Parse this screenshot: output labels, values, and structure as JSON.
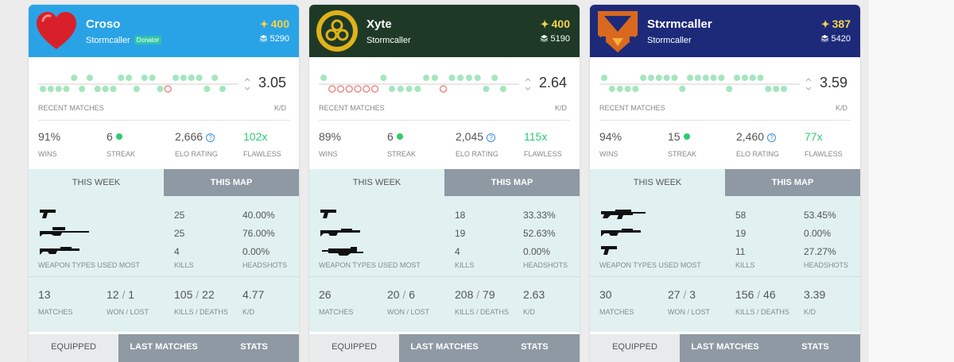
{
  "labels": {
    "recent_matches": "RECENT MATCHES",
    "kd": "K/D",
    "wins": "WINS",
    "streak": "STREAK",
    "elo": "ELO RATING",
    "flawless": "FLAWLESS",
    "this_week": "THIS WEEK",
    "this_map": "THIS MAP",
    "weapon_types": "WEAPON TYPES USED MOST",
    "kills": "KILLS",
    "headshots": "HEADSHOTS",
    "matches": "MATCHES",
    "won_lost": "WON / LOST",
    "kills_deaths": "KILLS / DEATHS",
    "equipped": "EQUIPPED",
    "last_matches": "LAST MATCHES",
    "stats": "STATS"
  },
  "colors": {
    "win": "#a4e6bd",
    "loss": "#ef8a8a",
    "green": "#2ecc71",
    "tab_inactive": "#8e99a3",
    "panel": "#e1f1f1",
    "star": "#f3d34a"
  },
  "players": [
    {
      "name": "Croso",
      "class": "Stormcaller",
      "badge": "Donator",
      "light": "400",
      "grimoire": "5290",
      "header_color": "#2aa3e6",
      "emblem": "heart-emblem-icon",
      "kd": "3.05",
      "wins": "91%",
      "streak": "6",
      "elo": "2,666",
      "flawless": "102x",
      "recent": [
        [
          0,
          1
        ],
        [
          0,
          1
        ],
        [
          0,
          1
        ],
        [
          0,
          1
        ],
        [
          1,
          1
        ],
        [
          0,
          1
        ],
        [
          1,
          1
        ],
        [
          0,
          1
        ],
        [
          0,
          1
        ],
        [
          0,
          1
        ],
        [
          1,
          1
        ],
        [
          1,
          1
        ],
        [
          0,
          1
        ],
        [
          1,
          1
        ],
        [
          1,
          1
        ],
        [
          0,
          1
        ],
        [
          0,
          0
        ],
        [
          1,
          1
        ],
        [
          1,
          1
        ],
        [
          1,
          1
        ],
        [
          1,
          1
        ],
        [
          0,
          1
        ],
        [
          1,
          1
        ],
        [
          0,
          1
        ]
      ],
      "weapons": [
        {
          "icon": "hand-cannon-icon",
          "kills": "25",
          "hs": "40.00%"
        },
        {
          "icon": "sniper-rifle-icon",
          "kills": "25",
          "hs": "76.00%"
        },
        {
          "icon": "shotgun-icon",
          "kills": "4",
          "hs": "0.00%"
        }
      ],
      "matches": "13",
      "won": "12",
      "lost": "1",
      "kills": "105",
      "deaths": "22",
      "kd_week": "4.77"
    },
    {
      "name": "Xyte",
      "class": "Stormcaller",
      "badge": "",
      "light": "400",
      "grimoire": "5190",
      "header_color": "#1e3a27",
      "emblem": "rings-emblem-icon",
      "kd": "2.64",
      "wins": "89%",
      "streak": "6",
      "elo": "2,045",
      "flawless": "115x",
      "recent": [
        [
          1,
          1
        ],
        [
          0,
          0
        ],
        [
          0,
          0
        ],
        [
          0,
          0
        ],
        [
          0,
          0
        ],
        [
          0,
          0
        ],
        [
          0,
          0
        ],
        [
          1,
          1
        ],
        [
          0,
          1
        ],
        [
          0,
          1
        ],
        [
          0,
          1
        ],
        [
          0,
          1
        ],
        [
          1,
          1
        ],
        [
          1,
          1
        ],
        [
          0,
          0
        ],
        [
          1,
          1
        ],
        [
          1,
          1
        ],
        [
          1,
          1
        ],
        [
          1,
          1
        ],
        [
          0,
          1
        ],
        [
          1,
          1
        ],
        [
          0,
          1
        ]
      ],
      "weapons": [
        {
          "icon": "hand-cannon-icon",
          "kills": "18",
          "hs": "33.33%"
        },
        {
          "icon": "shotgun-icon",
          "kills": "19",
          "hs": "52.63%"
        },
        {
          "icon": "fusion-rifle-icon",
          "kills": "4",
          "hs": "0.00%"
        }
      ],
      "matches": "26",
      "won": "20",
      "lost": "6",
      "kills": "208",
      "deaths": "79",
      "kd_week": "2.63"
    },
    {
      "name": "Stxrmcaller",
      "class": "Stormcaller",
      "badge": "",
      "light": "387",
      "grimoire": "5420",
      "header_color": "#1d2a7a",
      "emblem": "orange-emblem-icon",
      "kd": "3.59",
      "wins": "94%",
      "streak": "15",
      "elo": "2,460",
      "flawless": "77x",
      "recent": [
        [
          1,
          1
        ],
        [
          0,
          1
        ],
        [
          0,
          1
        ],
        [
          0,
          1
        ],
        [
          0,
          1
        ],
        [
          1,
          1
        ],
        [
          1,
          1
        ],
        [
          1,
          1
        ],
        [
          1,
          1
        ],
        [
          1,
          1
        ],
        [
          0,
          1
        ],
        [
          1,
          1
        ],
        [
          1,
          1
        ],
        [
          1,
          1
        ],
        [
          1,
          1
        ],
        [
          1,
          1
        ],
        [
          0,
          1
        ],
        [
          1,
          1
        ],
        [
          1,
          1
        ],
        [
          1,
          1
        ],
        [
          1,
          1
        ],
        [
          0,
          1
        ],
        [
          0,
          1
        ],
        [
          0,
          1
        ]
      ],
      "weapons": [
        {
          "icon": "auto-rifle-icon",
          "kills": "58",
          "hs": "53.45%"
        },
        {
          "icon": "shotgun-icon",
          "kills": "19",
          "hs": "0.00%"
        },
        {
          "icon": "hand-cannon-icon",
          "kills": "11",
          "hs": "27.27%"
        }
      ],
      "matches": "30",
      "won": "27",
      "lost": "3",
      "kills": "156",
      "deaths": "46",
      "kd_week": "3.39"
    }
  ]
}
